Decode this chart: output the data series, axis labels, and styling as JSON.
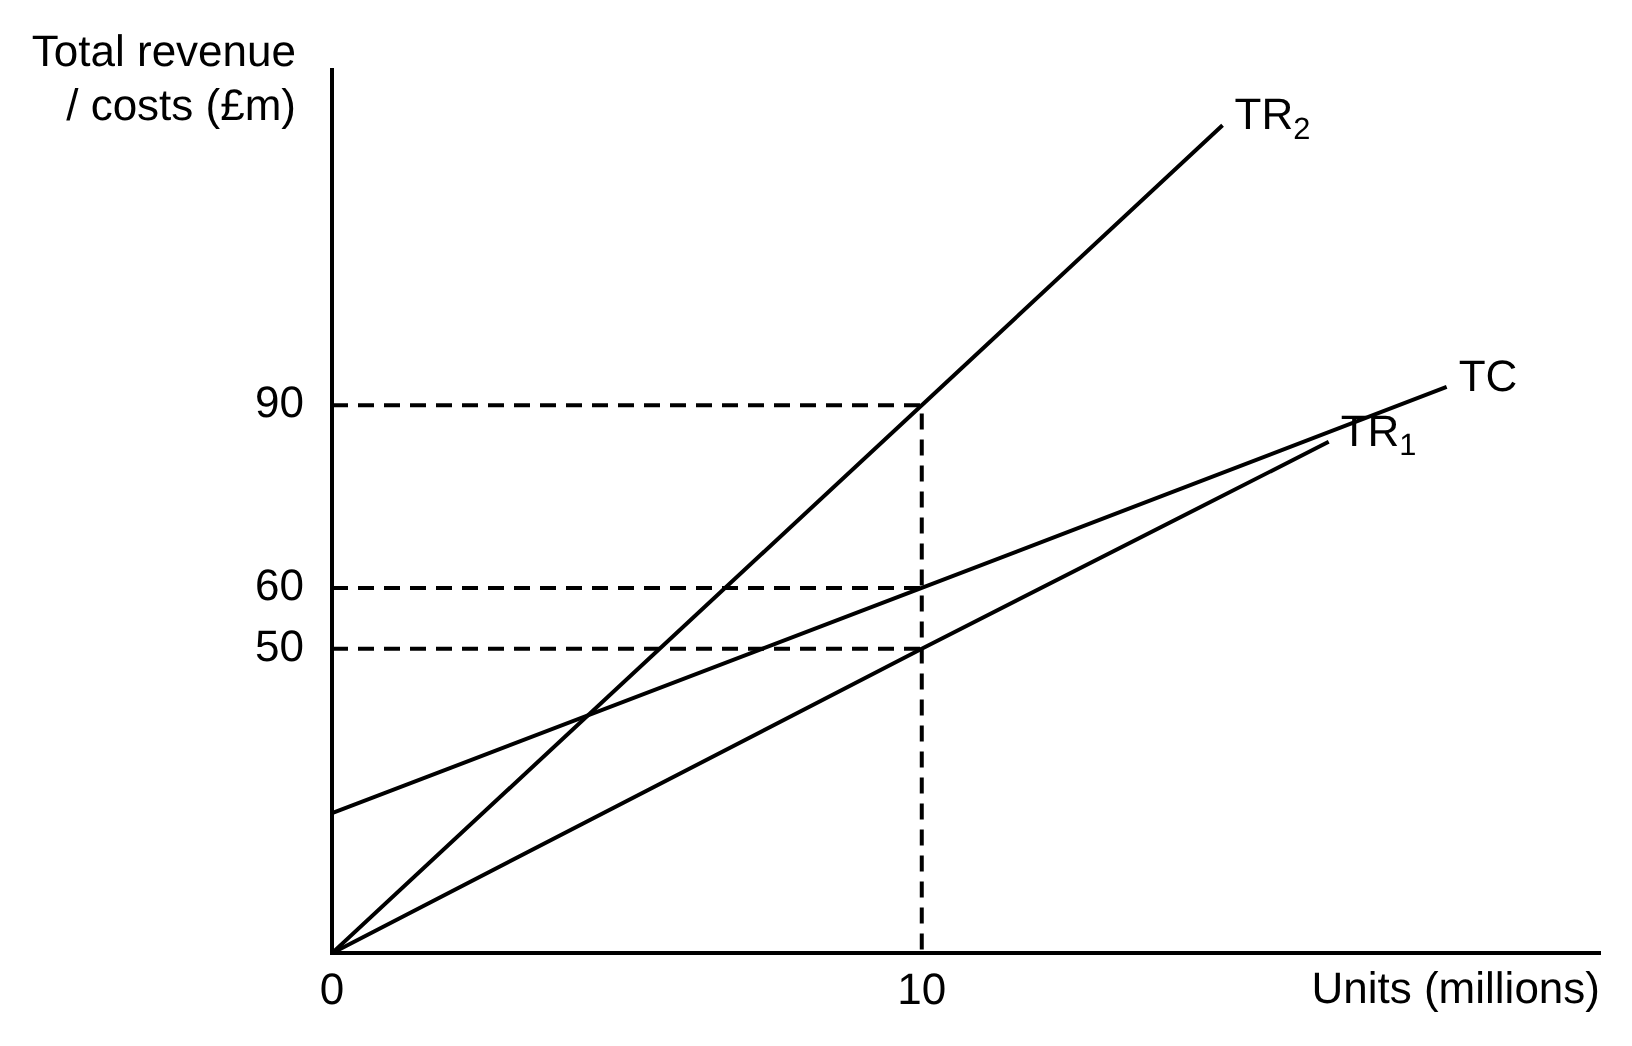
{
  "chart_data": {
    "type": "line",
    "ylabel": "Total revenue / costs (£m)",
    "xlabel": "Units (millions)",
    "xlim": [
      0,
      21.5
    ],
    "ylim": [
      0,
      145
    ],
    "xticks": [
      0,
      10
    ],
    "yticks": [
      50,
      60,
      90
    ],
    "grid": false,
    "legend": false,
    "marker": "none",
    "series": [
      {
        "name": "TR$_{2}$",
        "color": "#000000",
        "x": [
          0,
          10,
          15.1
        ],
        "values": [
          0,
          90,
          136
        ]
      },
      {
        "name": "TC",
        "color": "#000000",
        "x": [
          0,
          10,
          18.9
        ],
        "values": [
          23,
          60,
          93
        ]
      },
      {
        "name": "TR$_{1}$",
        "color": "#000000",
        "x": [
          0,
          10,
          16.9
        ],
        "values": [
          0,
          50,
          84
        ]
      },
      {
        "color": "#000000",
        "line_style": "dashed",
        "x": [
          0,
          10,
          10
        ],
        "values": [
          90,
          90,
          0
        ]
      },
      {
        "color": "#000000",
        "line_style": "dashed",
        "x": [
          0,
          10
        ],
        "values": [
          60,
          60
        ]
      },
      {
        "color": "#000000",
        "line_style": "dashed",
        "x": [
          0,
          10
        ],
        "values": [
          50,
          50
        ]
      }
    ]
  }
}
